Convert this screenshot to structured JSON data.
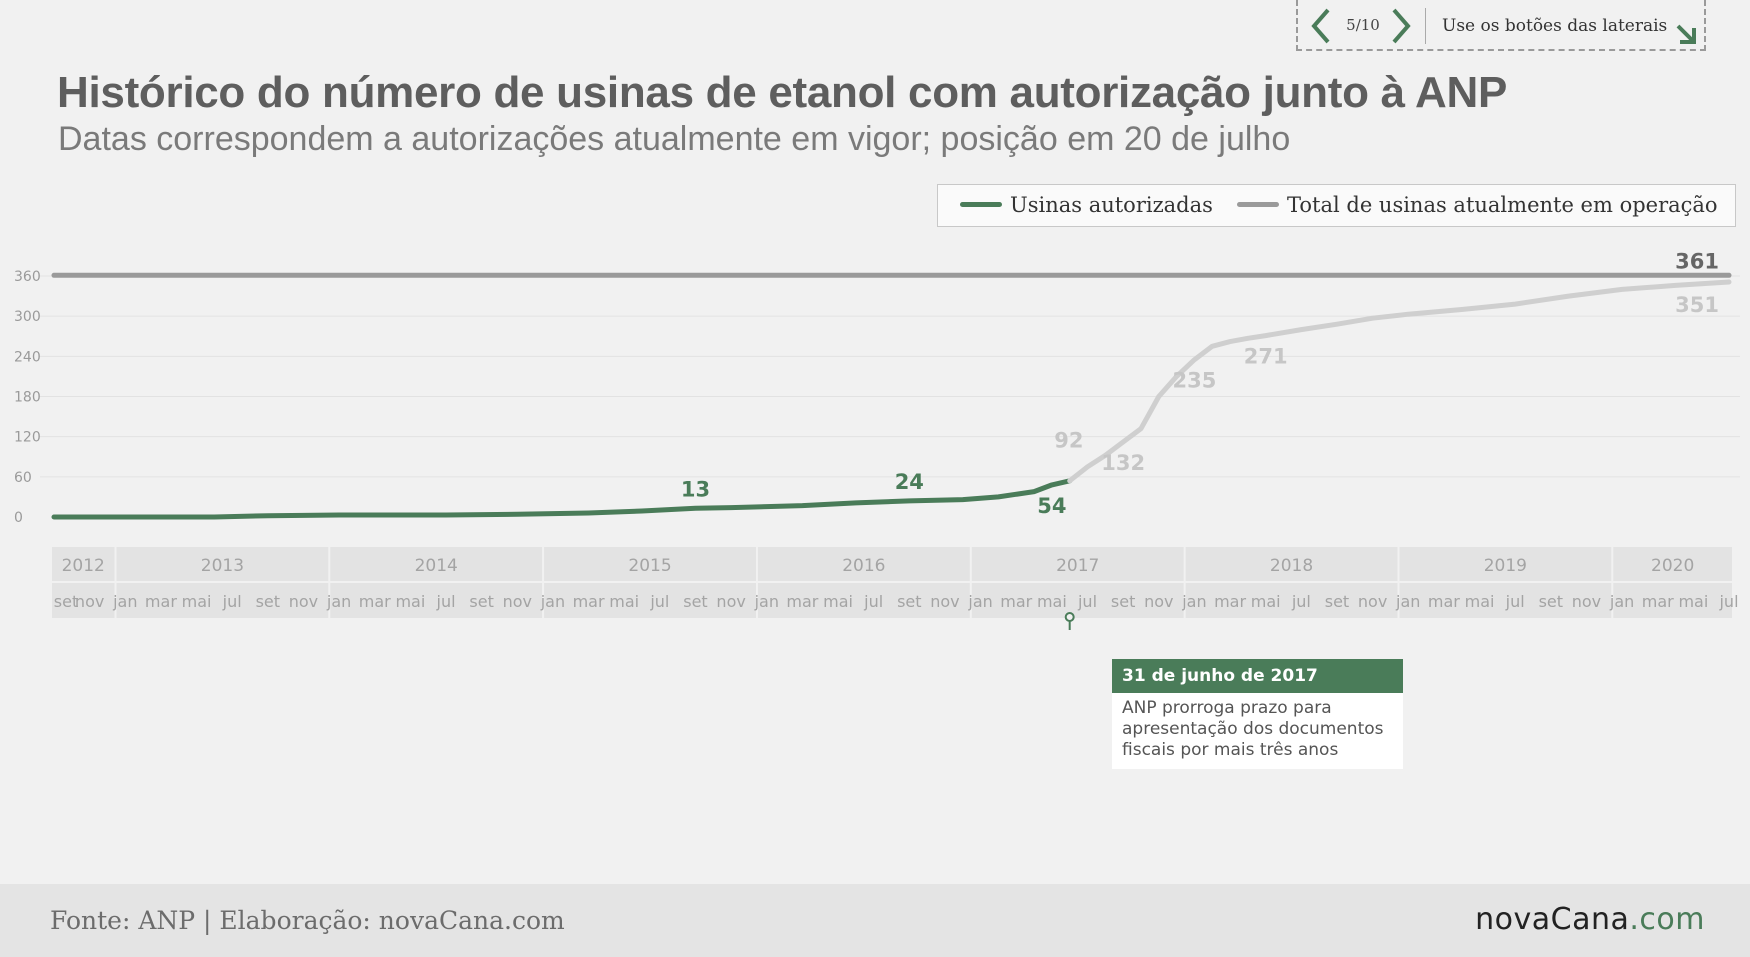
{
  "nav": {
    "pager": "5/10",
    "hint": "Use os botões das laterais",
    "prev_icon": "chevron-left-icon",
    "next_icon": "chevron-right-icon",
    "hint_icon": "arrow-down-right-icon"
  },
  "title": "Histórico do número de usinas de etanol com autorização junto à ANP",
  "subtitle": "Datas correspondem a autorizações atualmente em vigor; posição em 20 de julho",
  "legend": {
    "series1": "Usinas autorizadas",
    "series2": "Total de usinas atualmente em operação"
  },
  "colors": {
    "green": "#4a7c59",
    "gray_line": "#9a9a9a",
    "light_line": "#cfcfcf",
    "axis_band": "#e3e3e3"
  },
  "chart_data": {
    "type": "line",
    "ylim": [
      0,
      360
    ],
    "yticks": [
      0,
      60,
      120,
      180,
      240,
      300,
      360
    ],
    "xrange": [
      "2012-09",
      "2020-07"
    ],
    "years": [
      "2012",
      "2013",
      "2014",
      "2015",
      "2016",
      "2017",
      "2018",
      "2019",
      "2020"
    ],
    "month_ticks": [
      "set",
      "nov",
      "jan",
      "mar",
      "mai",
      "jul",
      "set",
      "nov",
      "jan",
      "mar",
      "mai",
      "jul",
      "set",
      "nov",
      "jan",
      "mar",
      "mai",
      "jul",
      "set",
      "nov",
      "jan",
      "mar",
      "mai",
      "jul",
      "set",
      "nov",
      "jan",
      "mar",
      "mai",
      "jul",
      "set",
      "nov",
      "jan",
      "mar",
      "mai",
      "jul",
      "set",
      "nov",
      "jan",
      "mar",
      "mai",
      "jul",
      "set",
      "nov",
      "jan",
      "mar",
      "mai",
      "jul"
    ],
    "grid": true,
    "legend_position": "top-right",
    "series": [
      {
        "name": "Usinas autorizadas",
        "color": "#4a7c59",
        "x": [
          "2012-09",
          "2013-06",
          "2013-09",
          "2014-01",
          "2014-07",
          "2014-11",
          "2015-03",
          "2015-06",
          "2015-09",
          "2015-11",
          "2016-03",
          "2016-06",
          "2016-09",
          "2016-12",
          "2017-02",
          "2017-04",
          "2017-05",
          "2017-06"
        ],
        "y": [
          0,
          0,
          2,
          3,
          3,
          4,
          6,
          9,
          13,
          14,
          17,
          21,
          24,
          26,
          30,
          38,
          48,
          54
        ]
      },
      {
        "name": "",
        "color": "#cfcfcf",
        "x": [
          "2017-06",
          "2017-07",
          "2017-08",
          "2017-09",
          "2017-10",
          "2017-11",
          "2017-12",
          "2018-01",
          "2018-02",
          "2018-03",
          "2018-04",
          "2018-05",
          "2018-07",
          "2018-09",
          "2018-11",
          "2019-01",
          "2019-04",
          "2019-07",
          "2019-10",
          "2020-01",
          "2020-04",
          "2020-07"
        ],
        "y": [
          54,
          75,
          92,
          112,
          132,
          180,
          210,
          235,
          255,
          262,
          267,
          271,
          280,
          288,
          297,
          303,
          310,
          318,
          330,
          340,
          346,
          351
        ]
      },
      {
        "name": "Total de usinas atualmente em operação",
        "color": "#9a9a9a",
        "x": [
          "2012-09",
          "2020-07"
        ],
        "y": [
          361,
          361
        ]
      }
    ],
    "data_labels": [
      {
        "text": "13",
        "x": "2015-09",
        "y": 13,
        "color": "#4a7c59",
        "pos": "above"
      },
      {
        "text": "24",
        "x": "2016-09",
        "y": 24,
        "color": "#4a7c59",
        "pos": "above"
      },
      {
        "text": "54",
        "x": "2017-05",
        "y": 48,
        "color": "#4a7c59",
        "pos": "below"
      },
      {
        "text": "92",
        "x": "2017-07",
        "y": 92,
        "color": "#c6c6c6",
        "pos": "left"
      },
      {
        "text": "132",
        "x": "2017-09",
        "y": 112,
        "color": "#c6c6c6",
        "pos": "below"
      },
      {
        "text": "235",
        "x": "2018-01",
        "y": 235,
        "color": "#c6c6c6",
        "pos": "below"
      },
      {
        "text": "271",
        "x": "2018-05",
        "y": 271,
        "color": "#c6c6c6",
        "pos": "below"
      },
      {
        "text": "361",
        "x": "2020-07",
        "y": 361,
        "color": "#666666",
        "pos": "above-left"
      },
      {
        "text": "351",
        "x": "2020-07",
        "y": 351,
        "color": "#c6c6c6",
        "pos": "below-left"
      }
    ],
    "annotation": {
      "x": "2017-06",
      "title": "31 de junho de 2017",
      "text": "ANP prorroga prazo para apresentação dos documentos fiscais por mais três anos"
    }
  },
  "footer": {
    "source": "Fonte: ANP | Elaboração: novaCana.com",
    "brand_name": "novaCana",
    "brand_tld": ".com"
  }
}
